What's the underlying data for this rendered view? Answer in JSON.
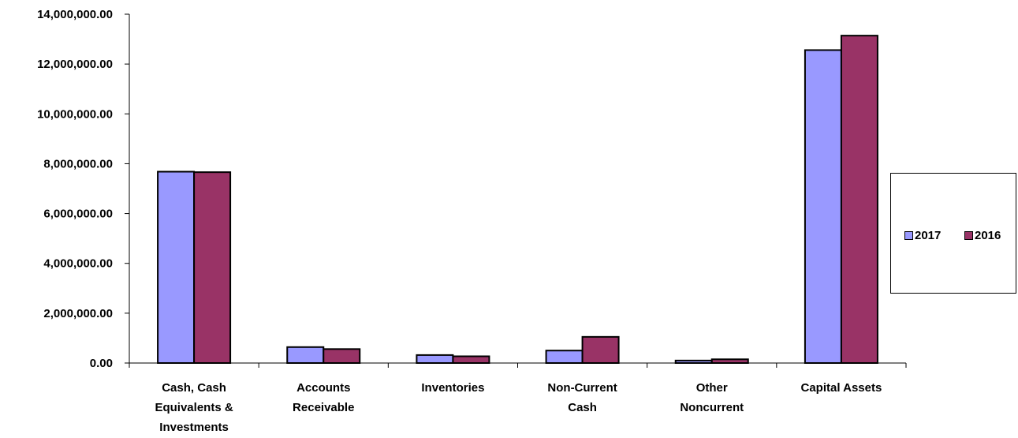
{
  "chart_data": {
    "type": "bar",
    "categories": [
      [
        "Cash, Cash",
        "Equivalents &",
        "Investments"
      ],
      [
        "Accounts",
        "Receivable"
      ],
      [
        "Inventories"
      ],
      [
        "Non-Current",
        "Cash"
      ],
      [
        "Other",
        "Noncurrent"
      ],
      [
        "Capital Assets"
      ]
    ],
    "series": [
      {
        "name": "2017",
        "color": "#9999FF",
        "values": [
          7680000,
          640000,
          320000,
          500000,
          100000,
          12560000
        ]
      },
      {
        "name": "2016",
        "color": "#993366",
        "values": [
          7660000,
          560000,
          270000,
          1050000,
          150000,
          13140000
        ]
      }
    ],
    "yticks": [
      0,
      2000000,
      4000000,
      6000000,
      8000000,
      10000000,
      12000000,
      14000000
    ],
    "ytick_labels": [
      "0.00",
      "2,000,000.00",
      "4,000,000.00",
      "6,000,000.00",
      "8,000,000.00",
      "10,000,000.00",
      "12,000,000.00",
      "14,000,000.00"
    ],
    "ylim": [
      0,
      14000000
    ],
    "title": "",
    "xlabel": "",
    "ylabel": "",
    "legend": {
      "position": "right"
    },
    "grid": false
  }
}
